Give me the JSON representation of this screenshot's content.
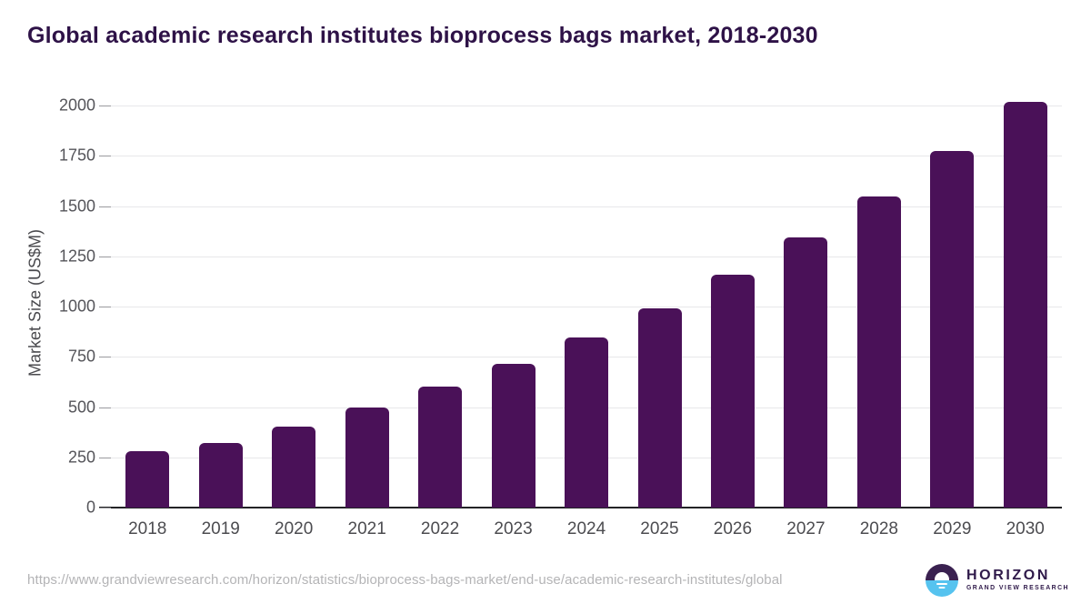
{
  "chart_data": {
    "type": "bar",
    "title": "Global academic research institutes bioprocess bags market, 2018-2030",
    "xlabel": "",
    "ylabel": "Market Size (US$M)",
    "categories": [
      "2018",
      "2019",
      "2020",
      "2021",
      "2022",
      "2023",
      "2024",
      "2025",
      "2026",
      "2027",
      "2028",
      "2029",
      "2030"
    ],
    "values": [
      282,
      323,
      404,
      496,
      601,
      714,
      845,
      992,
      1160,
      1343,
      1548,
      1773,
      2020
    ],
    "ylim": [
      0,
      2000
    ],
    "yticks": [
      0,
      250,
      500,
      750,
      1000,
      1250,
      1500,
      1750,
      2000
    ],
    "grid": true,
    "legend": false,
    "bar_color": "#4a1158"
  },
  "colors": {
    "title_text": "#2e1247",
    "bar": "#4a1158",
    "axis_line": "#232326",
    "gridline": "#e7e7ea",
    "tick_label": "#55555a",
    "url_text": "#b4b4b6",
    "logo_purple": "#3a2150",
    "logo_blue": "#56c3ef"
  },
  "footer": {
    "source_url": "https://www.grandviewresearch.com/horizon/statistics/bioprocess-bags-market/end-use/academic-research-institutes/global",
    "logo": {
      "title": "HORIZON",
      "subtitle": "GRAND VIEW RESEARCH"
    }
  }
}
